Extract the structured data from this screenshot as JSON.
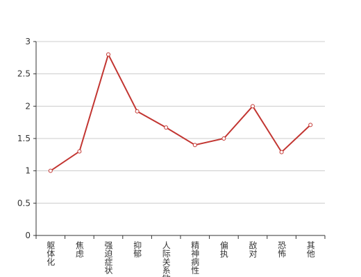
{
  "chart_data": {
    "type": "line",
    "categories": [
      "躯体化",
      "焦虑",
      "强迫症状",
      "抑郁",
      "人际关系敏感",
      "精神病性",
      "偏执",
      "敌对",
      "恐怖",
      "其他"
    ],
    "values": [
      1.0,
      1.3,
      2.8,
      1.92,
      1.67,
      1.4,
      1.5,
      2.0,
      1.29,
      1.71
    ],
    "color": "#c23531",
    "ylim": [
      0,
      3
    ],
    "yticks": [
      0,
      0.5,
      1,
      1.5,
      2,
      2.5,
      3
    ],
    "grid": true
  }
}
